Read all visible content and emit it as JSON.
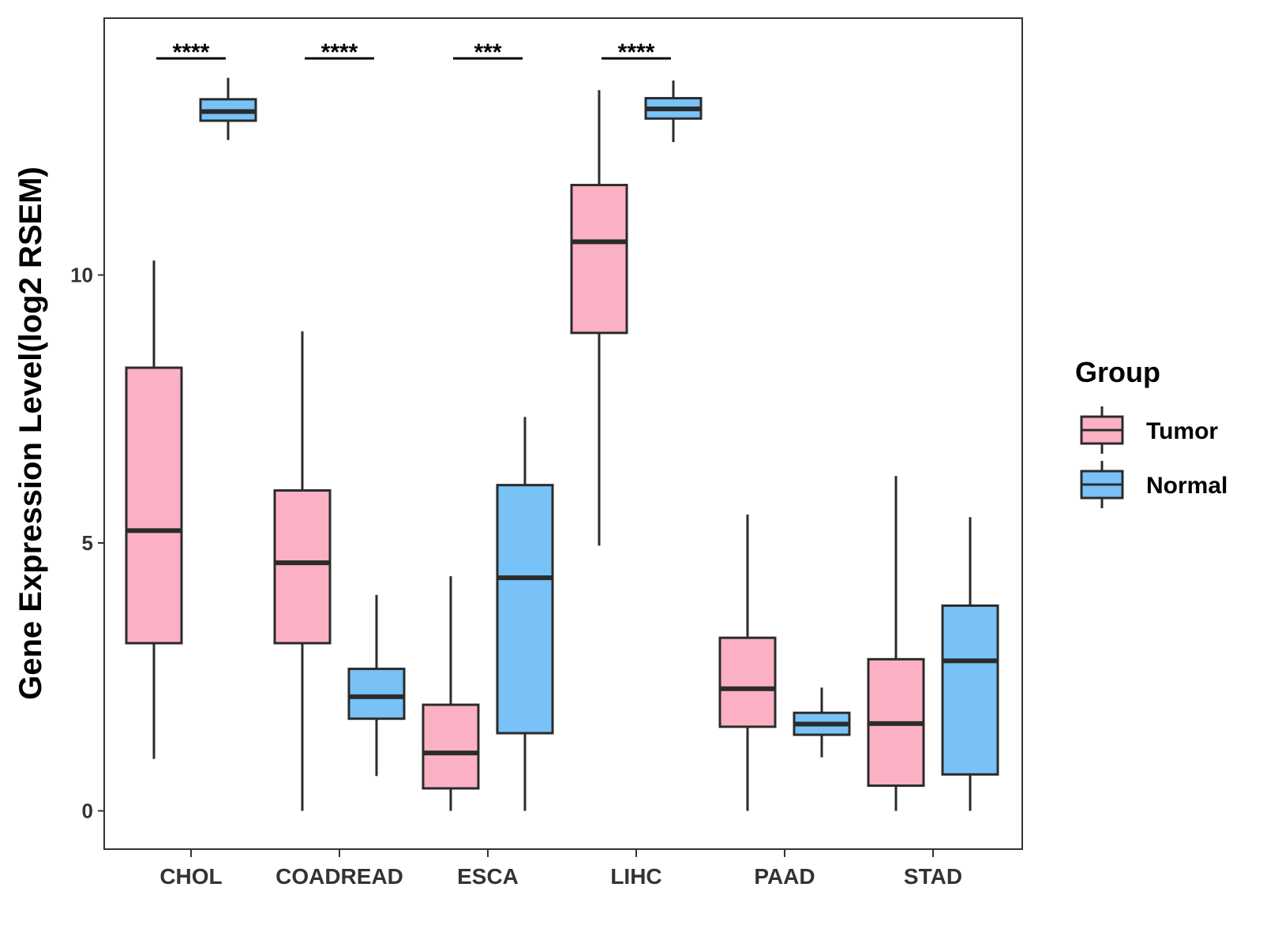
{
  "chart_data": {
    "type": "boxplot",
    "title": "",
    "xlabel": "",
    "ylabel": "Gene Expression Level(log2 RSEM)",
    "ylim": [
      -0.7,
      14.8
    ],
    "yticks": [
      0,
      5,
      10
    ],
    "grid": false,
    "legend": {
      "title": "Group",
      "position": "right",
      "entries": [
        {
          "label": "Tumor",
          "color": "#FBB1C3"
        },
        {
          "label": "Normal",
          "color": "#78C2F7"
        }
      ]
    },
    "categories": [
      "CHOL",
      "COADREAD",
      "ESCA",
      "LIHC",
      "PAAD",
      "STAD"
    ],
    "series": [
      {
        "name": "Tumor",
        "color": "#FBB1C3",
        "boxes": [
          {
            "min": 0.97,
            "q1": 3.13,
            "median": 5.23,
            "q3": 8.27,
            "max": 10.27
          },
          {
            "min": 0.0,
            "q1": 3.13,
            "median": 4.63,
            "q3": 5.98,
            "max": 8.95
          },
          {
            "min": 0.0,
            "q1": 0.42,
            "median": 1.08,
            "q3": 1.98,
            "max": 4.38
          },
          {
            "min": 4.95,
            "q1": 8.92,
            "median": 10.62,
            "q3": 11.68,
            "max": 13.45
          },
          {
            "min": 0.0,
            "q1": 1.57,
            "median": 2.28,
            "q3": 3.23,
            "max": 5.53
          },
          {
            "min": 0.0,
            "q1": 0.47,
            "median": 1.63,
            "q3": 2.83,
            "max": 6.25
          }
        ]
      },
      {
        "name": "Normal",
        "color": "#78C2F7",
        "boxes": [
          {
            "min": 12.52,
            "q1": 12.88,
            "median": 13.05,
            "q3": 13.28,
            "max": 13.68
          },
          {
            "min": 0.65,
            "q1": 1.72,
            "median": 2.13,
            "q3": 2.65,
            "max": 4.03
          },
          {
            "min": 0.0,
            "q1": 1.45,
            "median": 4.35,
            "q3": 6.08,
            "max": 7.35
          },
          {
            "min": 12.48,
            "q1": 12.92,
            "median": 13.1,
            "q3": 13.3,
            "max": 13.63
          },
          {
            "min": 1.0,
            "q1": 1.42,
            "median": 1.62,
            "q3": 1.83,
            "max": 2.3
          },
          {
            "min": 0.0,
            "q1": 0.68,
            "median": 2.8,
            "q3": 3.83,
            "max": 5.48
          }
        ]
      }
    ],
    "annotations": [
      {
        "category": "CHOL",
        "label": "****"
      },
      {
        "category": "COADREAD",
        "label": "****"
      },
      {
        "category": "ESCA",
        "label": "***"
      },
      {
        "category": "LIHC",
        "label": "****"
      }
    ]
  }
}
